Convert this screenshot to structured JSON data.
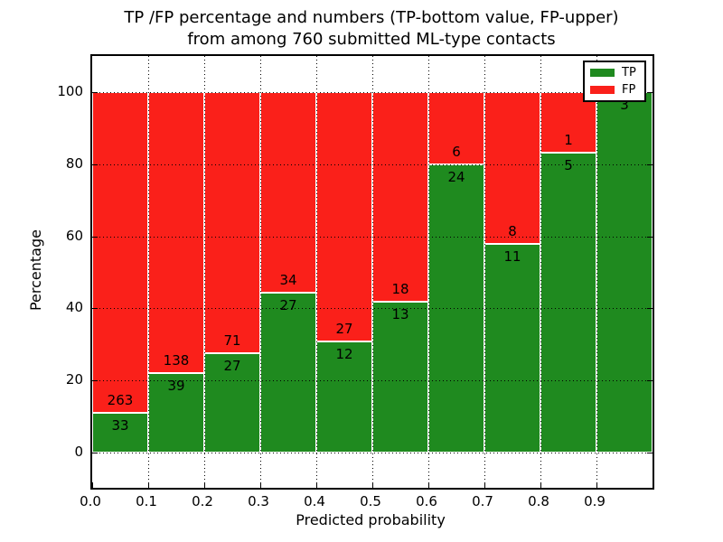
{
  "title": {
    "line1": "TP /FP percentage and numbers (TP-bottom value, FP-upper)",
    "line2": "from among 760 submitted ML-type contacts"
  },
  "chart_data": {
    "type": "bar",
    "stacked": true,
    "normalized_to_percent": true,
    "title": "TP /FP percentage and numbers (TP-bottom value, FP-upper) from among 760 submitted ML-type contacts",
    "xlabel": "Predicted probability",
    "ylabel": "Percentage",
    "x_bin_edges": [
      0.0,
      0.1,
      0.2,
      0.3,
      0.4,
      0.5,
      0.6,
      0.7,
      0.8,
      0.9,
      1.0
    ],
    "series": [
      {
        "name": "TP",
        "color": "#1f8a1f",
        "values": [
          33,
          39,
          27,
          27,
          12,
          13,
          24,
          11,
          5,
          3
        ]
      },
      {
        "name": "FP",
        "color": "#fa201a",
        "values": [
          263,
          138,
          71,
          34,
          27,
          18,
          6,
          8,
          1,
          0
        ]
      }
    ],
    "tp_percent": [
      11.15,
      22.03,
      27.55,
      44.26,
      30.77,
      41.94,
      80.0,
      57.89,
      83.33,
      100.0
    ],
    "bar_labels": {
      "tp": [
        "33",
        "39",
        "27",
        "27",
        "12",
        "13",
        "24",
        "11",
        "5",
        "3"
      ],
      "fp": [
        "263",
        "138",
        "71",
        "34",
        "27",
        "18",
        "6",
        "8",
        "1",
        ""
      ]
    },
    "xticks": [
      "0.0",
      "0.1",
      "0.2",
      "0.3",
      "0.4",
      "0.5",
      "0.6",
      "0.7",
      "0.8",
      "0.9"
    ],
    "yticks": [
      0,
      20,
      40,
      60,
      80,
      100
    ],
    "xlim": [
      0.0,
      1.0
    ],
    "ylim": [
      -9.8,
      110
    ],
    "grid": "dotted",
    "legend": {
      "position": "upper right",
      "entries": [
        "TP",
        "FP"
      ]
    }
  },
  "colors": {
    "tp": "#1f8a1f",
    "fp": "#fa201a",
    "bar_edge": "#ffffff",
    "grid": "#000000",
    "text": "#000000",
    "background": "#ffffff"
  }
}
